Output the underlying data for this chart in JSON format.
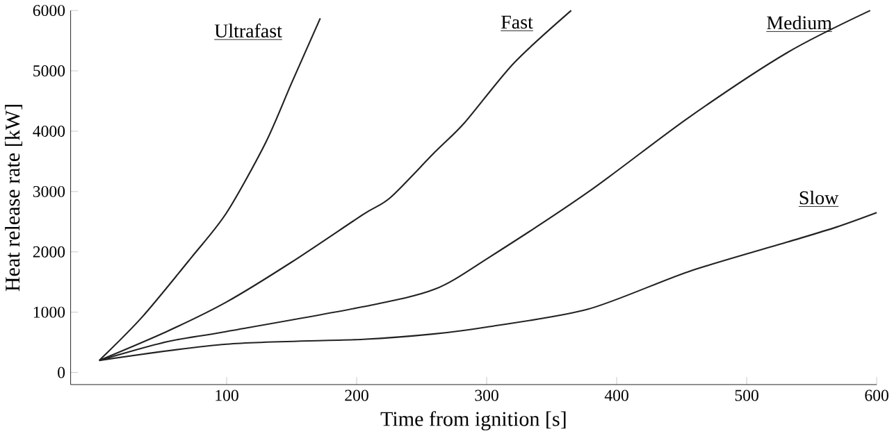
{
  "chart_data": {
    "type": "line",
    "xlabel": "Time from ignition [s]",
    "ylabel": "Heat release rate [kW]",
    "xlim": [
      -20,
      600
    ],
    "ylim": [
      -200,
      6000
    ],
    "xticks": [
      100,
      200,
      300,
      400,
      500,
      600
    ],
    "yticks": [
      0,
      1000,
      2000,
      3000,
      4000,
      5000,
      6000
    ],
    "grid": false,
    "legend": false,
    "marker": "none",
    "line_style": "solid",
    "series": [
      {
        "name": "Ultrafast",
        "color": "#222222",
        "x": [
          2,
          35,
          73,
          100,
          130,
          150,
          172
        ],
        "values": [
          200,
          920,
          1910,
          2650,
          3810,
          4800,
          5870
        ]
      },
      {
        "name": "Fast",
        "color": "#222222",
        "x": [
          2,
          54,
          100,
          150,
          205,
          226,
          260,
          283,
          321,
          365
        ],
        "values": [
          200,
          680,
          1170,
          1830,
          2620,
          2900,
          3650,
          4140,
          5130,
          6000
        ]
      },
      {
        "name": "Medium",
        "color": "#222222",
        "x": [
          2,
          54,
          100,
          205,
          260,
          302,
          378,
          455,
          531,
          595
        ],
        "values": [
          200,
          510,
          680,
          1090,
          1380,
          1910,
          2990,
          4220,
          5300,
          6000
        ]
      },
      {
        "name": "Slow",
        "color": "#222222",
        "x": [
          2,
          100,
          205,
          260,
          302,
          378,
          455,
          531,
          569,
          600
        ],
        "values": [
          200,
          470,
          550,
          640,
          760,
          1050,
          1670,
          2160,
          2410,
          2650
        ]
      }
    ]
  }
}
